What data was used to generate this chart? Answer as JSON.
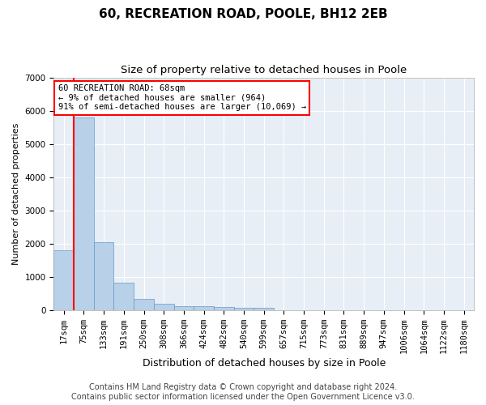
{
  "title1": "60, RECREATION ROAD, POOLE, BH12 2EB",
  "title2": "Size of property relative to detached houses in Poole",
  "xlabel": "Distribution of detached houses by size in Poole",
  "ylabel": "Number of detached properties",
  "categories": [
    "17sqm",
    "75sqm",
    "133sqm",
    "191sqm",
    "250sqm",
    "308sqm",
    "366sqm",
    "424sqm",
    "482sqm",
    "540sqm",
    "599sqm",
    "657sqm",
    "715sqm",
    "773sqm",
    "831sqm",
    "889sqm",
    "947sqm",
    "1006sqm",
    "1064sqm",
    "1122sqm",
    "1180sqm"
  ],
  "values": [
    1800,
    5800,
    2050,
    820,
    340,
    190,
    120,
    110,
    100,
    80,
    80,
    0,
    0,
    0,
    0,
    0,
    0,
    0,
    0,
    0,
    0
  ],
  "bar_color": "#b8d0e8",
  "bar_edge_color": "#6699cc",
  "vline_x": 0.5,
  "annotation_text": "60 RECREATION ROAD: 68sqm\n← 9% of detached houses are smaller (964)\n91% of semi-detached houses are larger (10,069) →",
  "annotation_box_color": "white",
  "annotation_border_color": "red",
  "vline_color": "red",
  "ylim": [
    0,
    7000
  ],
  "yticks": [
    0,
    1000,
    2000,
    3000,
    4000,
    5000,
    6000,
    7000
  ],
  "background_color": "#e8eef5",
  "grid_color": "white",
  "footer1": "Contains HM Land Registry data © Crown copyright and database right 2024.",
  "footer2": "Contains public sector information licensed under the Open Government Licence v3.0.",
  "title1_fontsize": 11,
  "title2_fontsize": 9.5,
  "xlabel_fontsize": 9,
  "ylabel_fontsize": 8,
  "tick_fontsize": 7.5,
  "footer_fontsize": 7
}
